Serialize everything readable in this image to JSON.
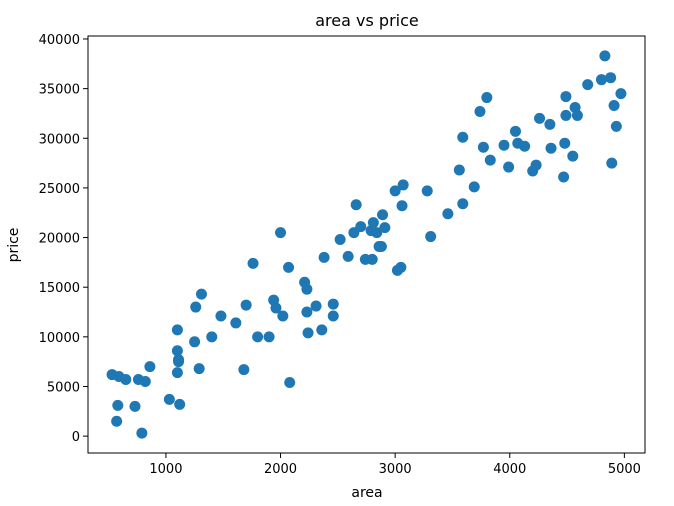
{
  "chart_data": {
    "type": "scatter",
    "title": "area vs price",
    "xlabel": "area",
    "ylabel": "price",
    "xlim": [
      320,
      5180
    ],
    "ylim": [
      -1700,
      40300
    ],
    "xticks": [
      1000,
      2000,
      3000,
      4000,
      5000
    ],
    "yticks": [
      0,
      5000,
      10000,
      15000,
      20000,
      25000,
      30000,
      35000,
      40000
    ],
    "grid": false,
    "marker_color": "#1f77b4",
    "points": [
      {
        "x": 530,
        "y": 6200
      },
      {
        "x": 590,
        "y": 6000
      },
      {
        "x": 650,
        "y": 5700
      },
      {
        "x": 760,
        "y": 5700
      },
      {
        "x": 820,
        "y": 5500
      },
      {
        "x": 860,
        "y": 7000
      },
      {
        "x": 580,
        "y": 3100
      },
      {
        "x": 730,
        "y": 3000
      },
      {
        "x": 570,
        "y": 1500
      },
      {
        "x": 790,
        "y": 300
      },
      {
        "x": 1030,
        "y": 3700
      },
      {
        "x": 1120,
        "y": 3200
      },
      {
        "x": 1100,
        "y": 10700
      },
      {
        "x": 1100,
        "y": 8600
      },
      {
        "x": 1110,
        "y": 7700
      },
      {
        "x": 1110,
        "y": 7500
      },
      {
        "x": 1100,
        "y": 6400
      },
      {
        "x": 1250,
        "y": 9500
      },
      {
        "x": 1290,
        "y": 6800
      },
      {
        "x": 1260,
        "y": 13000
      },
      {
        "x": 1310,
        "y": 14300
      },
      {
        "x": 1400,
        "y": 10000
      },
      {
        "x": 1480,
        "y": 12100
      },
      {
        "x": 1610,
        "y": 11400
      },
      {
        "x": 1680,
        "y": 6700
      },
      {
        "x": 1700,
        "y": 13200
      },
      {
        "x": 1760,
        "y": 17400
      },
      {
        "x": 1800,
        "y": 10000
      },
      {
        "x": 1900,
        "y": 10000
      },
      {
        "x": 1940,
        "y": 13700
      },
      {
        "x": 1960,
        "y": 12900
      },
      {
        "x": 2020,
        "y": 12100
      },
      {
        "x": 2000,
        "y": 20500
      },
      {
        "x": 2070,
        "y": 17000
      },
      {
        "x": 2080,
        "y": 5400
      },
      {
        "x": 2210,
        "y": 15500
      },
      {
        "x": 2230,
        "y": 14800
      },
      {
        "x": 2230,
        "y": 12500
      },
      {
        "x": 2240,
        "y": 10400
      },
      {
        "x": 2310,
        "y": 13100
      },
      {
        "x": 2360,
        "y": 10700
      },
      {
        "x": 2380,
        "y": 18000
      },
      {
        "x": 2460,
        "y": 13300
      },
      {
        "x": 2460,
        "y": 12100
      },
      {
        "x": 2520,
        "y": 19800
      },
      {
        "x": 2590,
        "y": 18100
      },
      {
        "x": 2640,
        "y": 20500
      },
      {
        "x": 2660,
        "y": 23300
      },
      {
        "x": 2700,
        "y": 21100
      },
      {
        "x": 2740,
        "y": 17800
      },
      {
        "x": 2800,
        "y": 17800
      },
      {
        "x": 2790,
        "y": 20700
      },
      {
        "x": 2810,
        "y": 21500
      },
      {
        "x": 2840,
        "y": 20500
      },
      {
        "x": 2860,
        "y": 19100
      },
      {
        "x": 2880,
        "y": 19100
      },
      {
        "x": 2890,
        "y": 22300
      },
      {
        "x": 2910,
        "y": 21000
      },
      {
        "x": 3000,
        "y": 24700
      },
      {
        "x": 3020,
        "y": 16700
      },
      {
        "x": 3050,
        "y": 17000
      },
      {
        "x": 3060,
        "y": 23200
      },
      {
        "x": 3070,
        "y": 25300
      },
      {
        "x": 3280,
        "y": 24700
      },
      {
        "x": 3310,
        "y": 20100
      },
      {
        "x": 3460,
        "y": 22400
      },
      {
        "x": 3560,
        "y": 26800
      },
      {
        "x": 3590,
        "y": 30100
      },
      {
        "x": 3590,
        "y": 23400
      },
      {
        "x": 3690,
        "y": 25100
      },
      {
        "x": 3740,
        "y": 32700
      },
      {
        "x": 3770,
        "y": 29100
      },
      {
        "x": 3800,
        "y": 34100
      },
      {
        "x": 3830,
        "y": 27800
      },
      {
        "x": 3950,
        "y": 29300
      },
      {
        "x": 3990,
        "y": 27100
      },
      {
        "x": 4050,
        "y": 30700
      },
      {
        "x": 4070,
        "y": 29500
      },
      {
        "x": 4130,
        "y": 29200
      },
      {
        "x": 4200,
        "y": 26700
      },
      {
        "x": 4230,
        "y": 27300
      },
      {
        "x": 4260,
        "y": 32000
      },
      {
        "x": 4350,
        "y": 31400
      },
      {
        "x": 4360,
        "y": 29000
      },
      {
        "x": 4470,
        "y": 26100
      },
      {
        "x": 4480,
        "y": 29500
      },
      {
        "x": 4490,
        "y": 34200
      },
      {
        "x": 4490,
        "y": 32300
      },
      {
        "x": 4550,
        "y": 28200
      },
      {
        "x": 4570,
        "y": 33100
      },
      {
        "x": 4590,
        "y": 32300
      },
      {
        "x": 4680,
        "y": 35400
      },
      {
        "x": 4800,
        "y": 35900
      },
      {
        "x": 4830,
        "y": 38300
      },
      {
        "x": 4880,
        "y": 36100
      },
      {
        "x": 4890,
        "y": 27500
      },
      {
        "x": 4910,
        "y": 33300
      },
      {
        "x": 4930,
        "y": 31200
      },
      {
        "x": 4970,
        "y": 34500
      }
    ]
  }
}
